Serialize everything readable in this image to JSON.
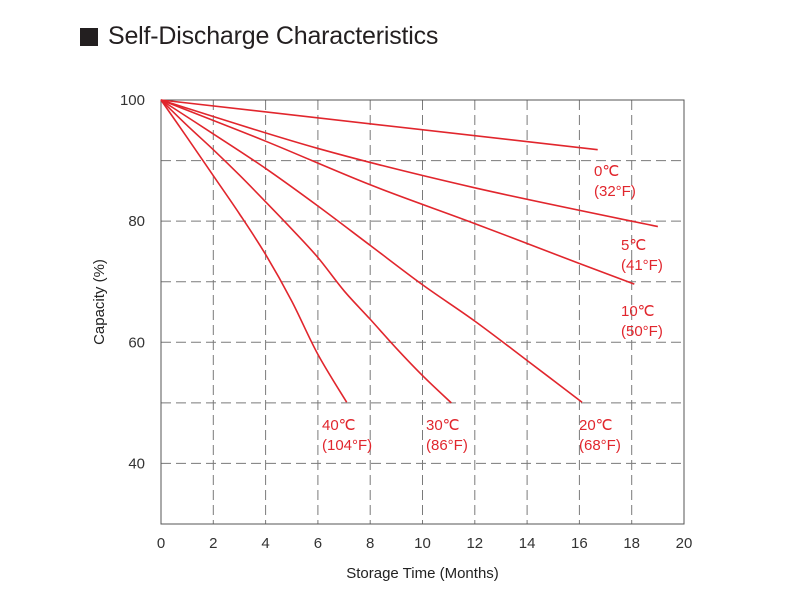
{
  "header": {
    "title": "Self-Discharge Characteristics"
  },
  "chart_data": {
    "type": "line",
    "title": "Self-Discharge Characteristics",
    "xlabel": "Storage Time (Months)",
    "ylabel": "Capacity (%)",
    "xlim": [
      0,
      20
    ],
    "ylim": [
      30,
      100
    ],
    "xticks": [
      0,
      2,
      4,
      6,
      8,
      10,
      12,
      14,
      16,
      18,
      20
    ],
    "yticks": [
      40,
      60,
      80,
      100
    ],
    "grid": true,
    "color": "#e1262d",
    "series": [
      {
        "name": "0℃",
        "name_f": "(32°F)",
        "points": [
          [
            0,
            100
          ],
          [
            16.7,
            91.8
          ]
        ]
      },
      {
        "name": "5℃",
        "name_f": "(41°F)",
        "points": [
          [
            0,
            100
          ],
          [
            6,
            92
          ],
          [
            12,
            85.5
          ],
          [
            19,
            79.1
          ]
        ]
      },
      {
        "name": "10℃",
        "name_f": "(50°F)",
        "points": [
          [
            0,
            100
          ],
          [
            4,
            93.2
          ],
          [
            8,
            86
          ],
          [
            12,
            79.6
          ],
          [
            16,
            73
          ],
          [
            18.1,
            69.6
          ]
        ]
      },
      {
        "name": "20℃",
        "name_f": "(68°F)",
        "points": [
          [
            0,
            100
          ],
          [
            2,
            94.4
          ],
          [
            4,
            88.7
          ],
          [
            6,
            82.5
          ],
          [
            8,
            76
          ],
          [
            10,
            69.5
          ],
          [
            12,
            63.5
          ],
          [
            14,
            57
          ],
          [
            16.1,
            50.1
          ]
        ]
      },
      {
        "name": "30℃",
        "name_f": "(86°F)",
        "points": [
          [
            0,
            100
          ],
          [
            1,
            95.8
          ],
          [
            2,
            91.8
          ],
          [
            3,
            87.6
          ],
          [
            4,
            83.2
          ],
          [
            5,
            78.7
          ],
          [
            6,
            74
          ],
          [
            7,
            68.5
          ],
          [
            8,
            63.8
          ],
          [
            9,
            59
          ],
          [
            10,
            54.5
          ],
          [
            11.1,
            50
          ]
        ]
      },
      {
        "name": "40℃",
        "name_f": "(104°F)",
        "points": [
          [
            0,
            100
          ],
          [
            1,
            93.8
          ],
          [
            2,
            87.5
          ],
          [
            3,
            81.2
          ],
          [
            4,
            74.5
          ],
          [
            5,
            66.8
          ],
          [
            6,
            58
          ],
          [
            7.1,
            50.1
          ]
        ]
      }
    ]
  }
}
